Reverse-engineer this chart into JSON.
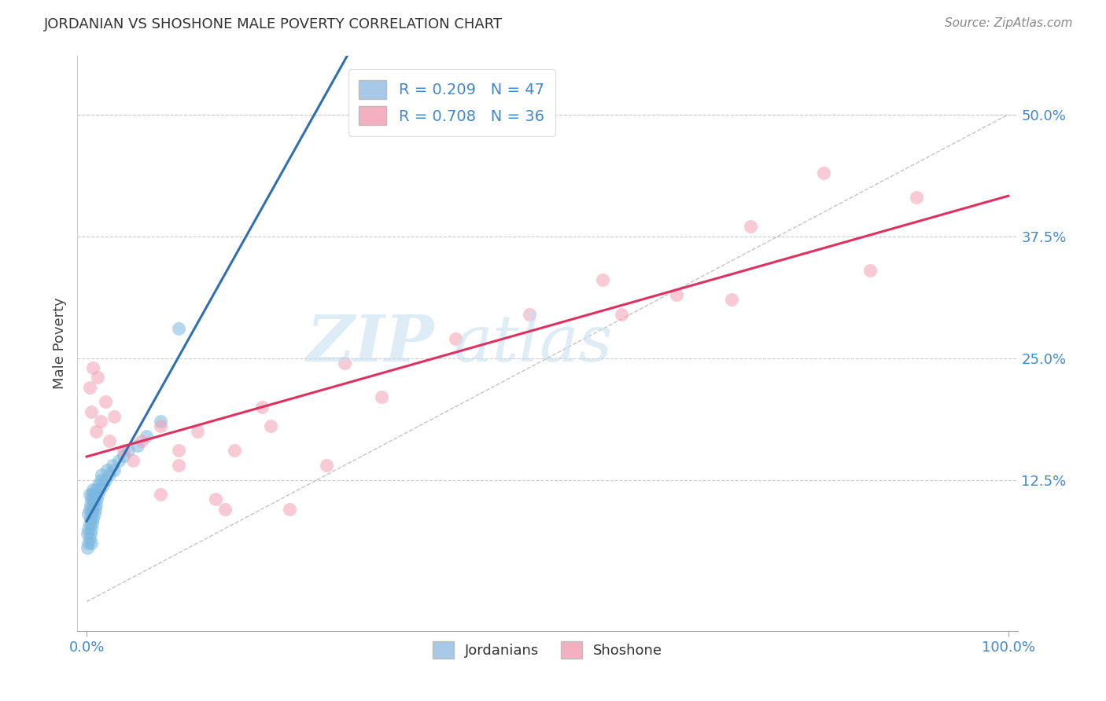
{
  "title": "JORDANIAN VS SHOSHONE MALE POVERTY CORRELATION CHART",
  "source": "Source: ZipAtlas.com",
  "ylabel": "Male Poverty",
  "y_tick_labels": [
    "12.5%",
    "25.0%",
    "37.5%",
    "50.0%"
  ],
  "y_tick_vals": [
    0.125,
    0.25,
    0.375,
    0.5
  ],
  "blue_color": "#7bb8e0",
  "pink_color": "#f4a0b5",
  "blue_line_color": "#3070b0",
  "pink_line_color": "#e03060",
  "blue_R": 0.209,
  "blue_N": 47,
  "pink_R": 0.708,
  "pink_N": 36,
  "jordanian_x": [
    0.001,
    0.001,
    0.002,
    0.002,
    0.002,
    0.003,
    0.003,
    0.003,
    0.003,
    0.004,
    0.004,
    0.004,
    0.005,
    0.005,
    0.005,
    0.005,
    0.006,
    0.006,
    0.006,
    0.007,
    0.007,
    0.007,
    0.008,
    0.008,
    0.009,
    0.009,
    0.01,
    0.01,
    0.011,
    0.012,
    0.013,
    0.014,
    0.015,
    0.016,
    0.018,
    0.02,
    0.022,
    0.025,
    0.028,
    0.03,
    0.035,
    0.04,
    0.045,
    0.055,
    0.065,
    0.08,
    0.1
  ],
  "jordanian_y": [
    0.055,
    0.07,
    0.06,
    0.075,
    0.09,
    0.065,
    0.08,
    0.095,
    0.11,
    0.07,
    0.085,
    0.1,
    0.06,
    0.075,
    0.09,
    0.105,
    0.08,
    0.095,
    0.11,
    0.085,
    0.1,
    0.115,
    0.09,
    0.105,
    0.095,
    0.11,
    0.1,
    0.115,
    0.105,
    0.11,
    0.12,
    0.115,
    0.125,
    0.13,
    0.12,
    0.125,
    0.135,
    0.13,
    0.14,
    0.135,
    0.145,
    0.15,
    0.155,
    0.16,
    0.17,
    0.185,
    0.28
  ],
  "shoshone_x": [
    0.003,
    0.005,
    0.007,
    0.01,
    0.012,
    0.015,
    0.02,
    0.025,
    0.03,
    0.04,
    0.05,
    0.06,
    0.08,
    0.1,
    0.12,
    0.14,
    0.16,
    0.19,
    0.22,
    0.26,
    0.08,
    0.1,
    0.15,
    0.2,
    0.28,
    0.32,
    0.4,
    0.48,
    0.56,
    0.64,
    0.72,
    0.8,
    0.85,
    0.9,
    0.7,
    0.58
  ],
  "shoshone_y": [
    0.22,
    0.195,
    0.24,
    0.175,
    0.23,
    0.185,
    0.205,
    0.165,
    0.19,
    0.155,
    0.145,
    0.165,
    0.11,
    0.14,
    0.175,
    0.105,
    0.155,
    0.2,
    0.095,
    0.14,
    0.18,
    0.155,
    0.095,
    0.18,
    0.245,
    0.21,
    0.27,
    0.295,
    0.33,
    0.315,
    0.385,
    0.44,
    0.34,
    0.415,
    0.31,
    0.295
  ]
}
